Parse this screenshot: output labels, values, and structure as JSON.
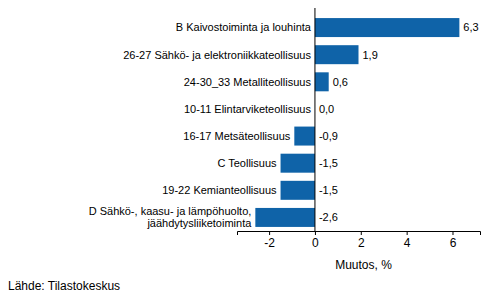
{
  "chart_data": {
    "type": "bar",
    "orientation": "horizontal",
    "categories": [
      "B Kaivostoiminta ja louhinta",
      "26-27 Sähkö- ja elektroniikkateollisuus",
      "24-30_33 Metalliteollisuus",
      "10-11 Elintarviketeollisuus",
      "16-17 Metsäteollisuus",
      "C Teollisuus",
      "19-22 Kemianteollisuus",
      "D Sähkö-, kaasu- ja lämpöhuolto, jäähdytysliiketoiminta"
    ],
    "values": [
      6.3,
      1.9,
      0.6,
      0.0,
      -0.9,
      -1.5,
      -1.5,
      -2.6
    ],
    "value_labels": [
      "6,3",
      "1,9",
      "0,6",
      "0,0",
      "-0,9",
      "-1,5",
      "-1,5",
      "-2,6"
    ],
    "data_labels": true,
    "color": "#0f63a8",
    "xlim": [
      -3.4,
      7.2
    ],
    "xticks": [
      -2,
      0,
      2,
      4,
      6
    ],
    "x_label": "Muutos, %",
    "source": "Lähde: Tilastokeskus",
    "grid": false
  }
}
